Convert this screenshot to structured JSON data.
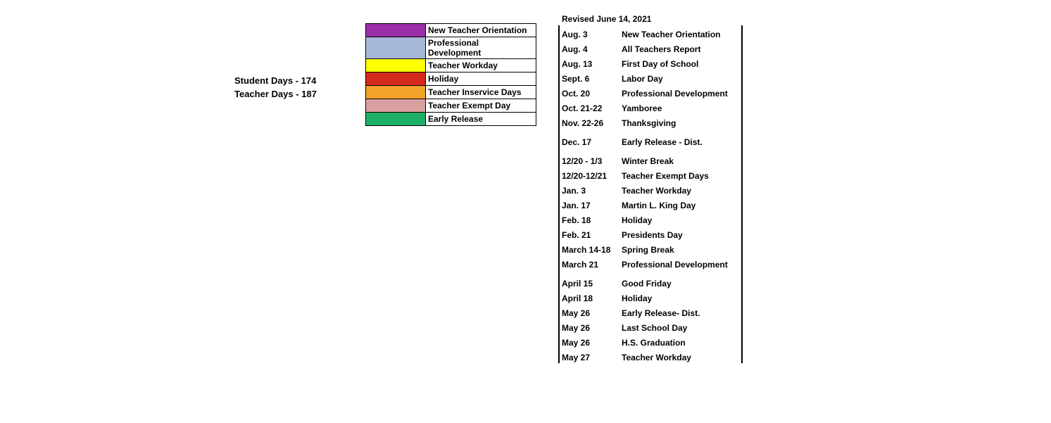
{
  "counts": {
    "student_days": "Student Days - 174",
    "teacher_days": "Teacher Days - 187"
  },
  "legend": [
    {
      "color": "#9b2fa8",
      "label": "New Teacher Orientation"
    },
    {
      "color": "#a7b8d8",
      "label": "Professional Development"
    },
    {
      "color": "#ffff00",
      "label": "Teacher Workday"
    },
    {
      "color": "#d42a1c",
      "label": "Holiday"
    },
    {
      "color": "#f2a32a",
      "label": "Teacher Inservice Days"
    },
    {
      "color": "#d9a0a0",
      "label": "Teacher Exempt Day"
    },
    {
      "color": "#1fb067",
      "label": "Early Release"
    }
  ],
  "revised": "Revised June 14, 2021",
  "events": [
    {
      "date": "Aug. 3",
      "desc": "New Teacher Orientation"
    },
    {
      "date": "Aug. 4",
      "desc": "All Teachers Report"
    },
    {
      "date": "Aug.  13",
      "desc": "First Day of School"
    },
    {
      "date": "Sept. 6",
      "desc": "Labor Day"
    },
    {
      "date": "Oct. 20",
      "desc": "Professional Development"
    },
    {
      "date": "Oct. 21-22",
      "desc": "Yamboree"
    },
    {
      "date": "Nov. 22-26",
      "desc": "Thanksgiving"
    },
    {
      "gap": true
    },
    {
      "date": "Dec. 17",
      "desc": "Early Release - Dist."
    },
    {
      "gap": true
    },
    {
      "date": "12/20 - 1/3",
      "desc": "Winter Break"
    },
    {
      "date": "12/20-12/21",
      "desc": "Teacher Exempt Days"
    },
    {
      "date": "Jan. 3",
      "desc": "Teacher Workday"
    },
    {
      "date": "Jan. 17",
      "desc": "Martin L. King Day"
    },
    {
      "date": "Feb. 18",
      "desc": "Holiday"
    },
    {
      "date": "Feb. 21",
      "desc": "Presidents Day"
    },
    {
      "date": "March 14-18",
      "desc": "Spring Break"
    },
    {
      "date": "March 21",
      "desc": "Professional Development"
    },
    {
      "gap": true
    },
    {
      "date": "April 15",
      "desc": "Good Friday"
    },
    {
      "date": "April 18",
      "desc": "Holiday"
    },
    {
      "date": "May 26",
      "desc": "Early Release- Dist."
    },
    {
      "date": "May 26",
      "desc": "Last School Day"
    },
    {
      "date": "May 26",
      "desc": "H.S. Graduation"
    },
    {
      "date": "May 27",
      "desc": "Teacher Workday"
    }
  ],
  "colors": {
    "border": "#000000",
    "text": "#000000",
    "background": "#ffffff"
  },
  "typography": {
    "font_family": "Arial, sans-serif",
    "body_size_pt": 9,
    "body_weight": "bold"
  }
}
